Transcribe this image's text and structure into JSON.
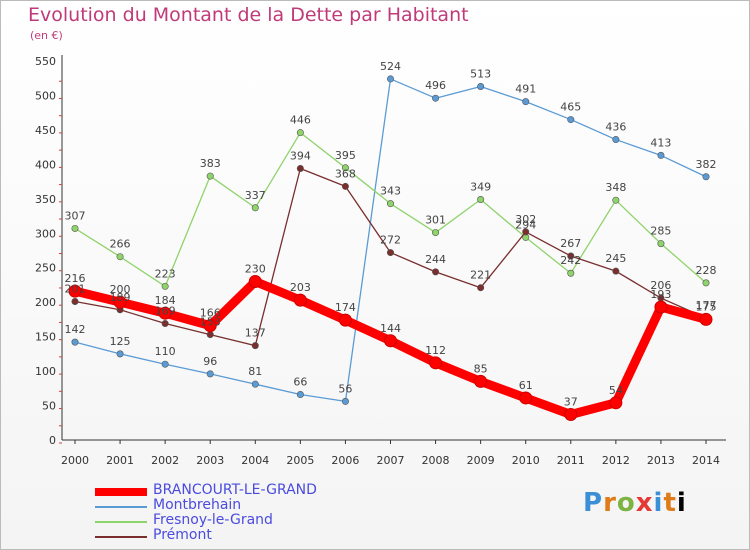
{
  "title": "Evolution du Montant de la Dette par Habitant",
  "subtitle": "(en €)",
  "logo": "Proxiti",
  "chart_data": {
    "type": "line",
    "title": "Evolution du Montant de la Dette par Habitant",
    "subtitle": "(en €)",
    "xlabel": "",
    "ylabel": "",
    "x": [
      "2000",
      "2001",
      "2002",
      "2003",
      "2004",
      "2005",
      "2006",
      "2007",
      "2008",
      "2009",
      "2010",
      "2011",
      "2012",
      "2013",
      "2014"
    ],
    "ylim": [
      0,
      550
    ],
    "yticks": [
      0,
      50,
      100,
      150,
      200,
      250,
      300,
      350,
      400,
      450,
      500,
      550
    ],
    "grid": false,
    "legend_position": "bottom-left",
    "series": [
      {
        "name": "BRANCOURT-LE-GRAND",
        "color": "#ff0000",
        "values": [
          216,
          200,
          184,
          166,
          230,
          203,
          174,
          144,
          112,
          85,
          61,
          37,
          54,
          193,
          175
        ]
      },
      {
        "name": "Montbrehain",
        "color": "#5b9bd5",
        "values": [
          142,
          125,
          110,
          96,
          81,
          66,
          56,
          524,
          496,
          513,
          491,
          465,
          436,
          413,
          382
        ]
      },
      {
        "name": "Fresnoy-le-Grand",
        "color": "#8fd36b",
        "values": [
          307,
          266,
          223,
          383,
          337,
          446,
          395,
          343,
          301,
          349,
          294,
          242,
          348,
          285,
          228
        ]
      },
      {
        "name": "Prémont",
        "color": "#7a2e2e",
        "values": [
          201,
          189,
          169,
          153,
          137,
          394,
          368,
          272,
          244,
          221,
          302,
          267,
          245,
          206,
          177
        ]
      }
    ]
  }
}
